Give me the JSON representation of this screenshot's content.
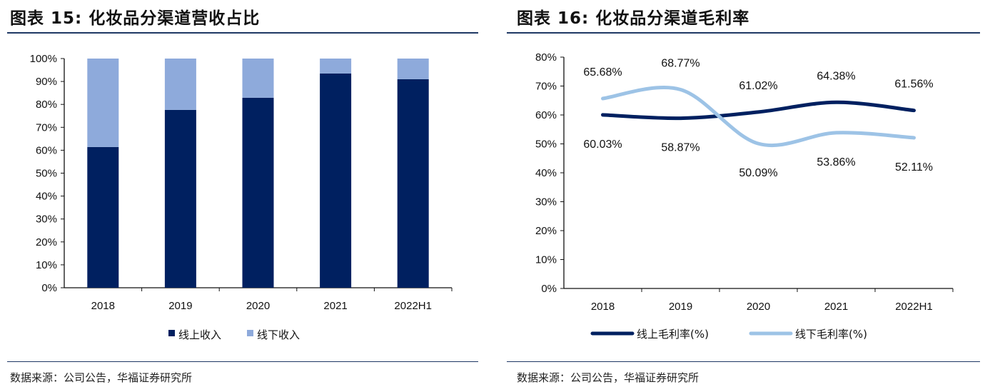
{
  "chart_data": [
    {
      "type": "bar",
      "stacked": true,
      "title": "图表 15: 化妆品分渠道营收占比",
      "categories": [
        "2018",
        "2019",
        "2020",
        "2021",
        "2022H1"
      ],
      "series": [
        {
          "name": "线上收入",
          "values": [
            61.4,
            77.6,
            82.9,
            93.5,
            91.0
          ],
          "color": "#002060"
        },
        {
          "name": "线下收入",
          "values": [
            38.6,
            22.4,
            17.1,
            6.5,
            9.0
          ],
          "color": "#8eaadb"
        }
      ],
      "yticks": [
        "0%",
        "10%",
        "20%",
        "30%",
        "40%",
        "50%",
        "60%",
        "70%",
        "80%",
        "90%",
        "100%"
      ],
      "ylim": [
        0,
        100
      ],
      "legend": "bottom",
      "grid": false,
      "source": "数据来源：公司公告，华福证券研究所"
    },
    {
      "type": "line",
      "smooth": true,
      "title": "图表 16: 化妆品分渠道毛利率",
      "categories": [
        "2018",
        "2019",
        "2020",
        "2021",
        "2022H1"
      ],
      "series": [
        {
          "name": "线上毛利率(%)",
          "values": [
            60.03,
            58.87,
            61.02,
            64.38,
            61.56
          ],
          "labels": [
            "60.03%",
            "58.87%",
            "61.02%",
            "64.38%",
            "61.56%"
          ],
          "color": "#002060"
        },
        {
          "name": "线下毛利率(%)",
          "values": [
            65.68,
            68.77,
            50.09,
            53.86,
            52.11
          ],
          "labels": [
            "65.68%",
            "68.77%",
            "50.09%",
            "53.86%",
            "52.11%"
          ],
          "color": "#9dc3e6"
        }
      ],
      "yticks": [
        "0%",
        "10%",
        "20%",
        "30%",
        "40%",
        "50%",
        "60%",
        "70%",
        "80%"
      ],
      "ylim": [
        0,
        80
      ],
      "legend": "bottom",
      "grid": false,
      "source": "数据来源：公司公告，华福证券研究所"
    }
  ]
}
